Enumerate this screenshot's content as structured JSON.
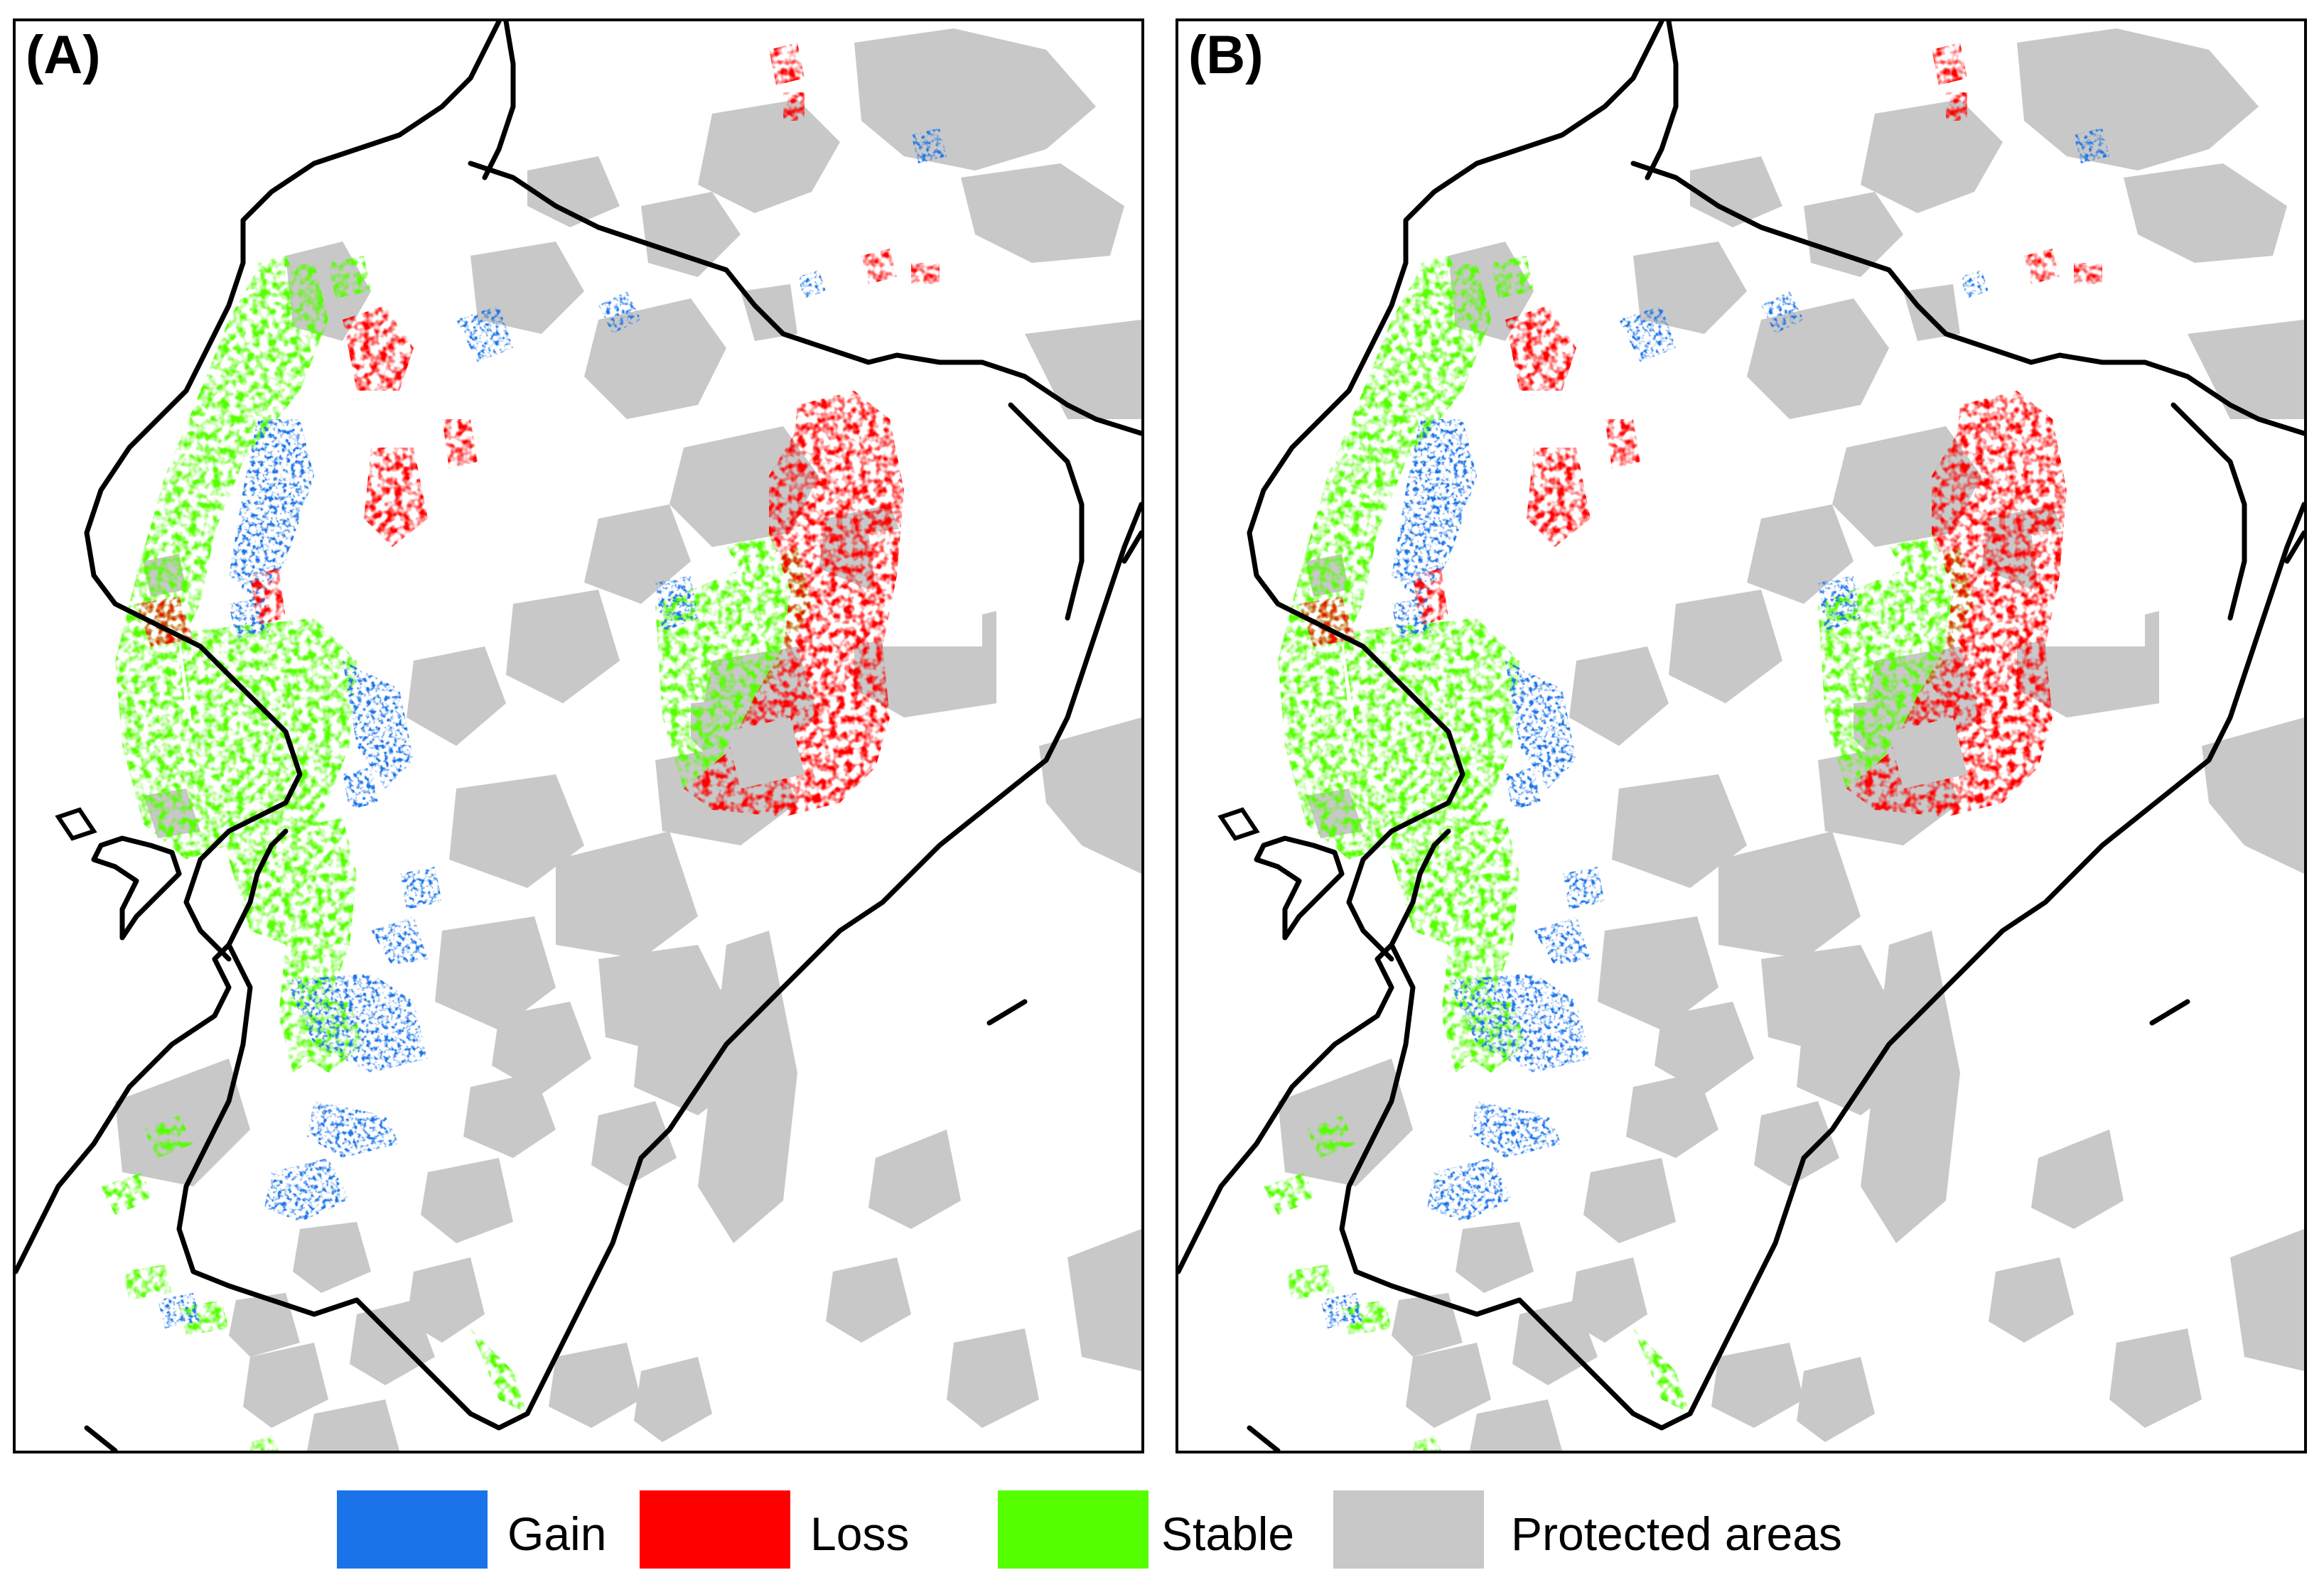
{
  "panels": [
    {
      "label": "(A)"
    },
    {
      "label": "(B)"
    }
  ],
  "legend": {
    "items": [
      {
        "label": "Gain",
        "color": "#1a73e8"
      },
      {
        "label": "Loss",
        "color": "#ff0000"
      },
      {
        "label": "Stable",
        "color": "#55ff00"
      },
      {
        "label": "Protected areas",
        "color": "#c8c8c8"
      }
    ]
  },
  "colors": {
    "gain": "#1a73e8",
    "loss": "#ff0000",
    "stable": "#55ff00",
    "protected": "#c8c8c8",
    "border": "#000000",
    "background": "#ffffff"
  }
}
